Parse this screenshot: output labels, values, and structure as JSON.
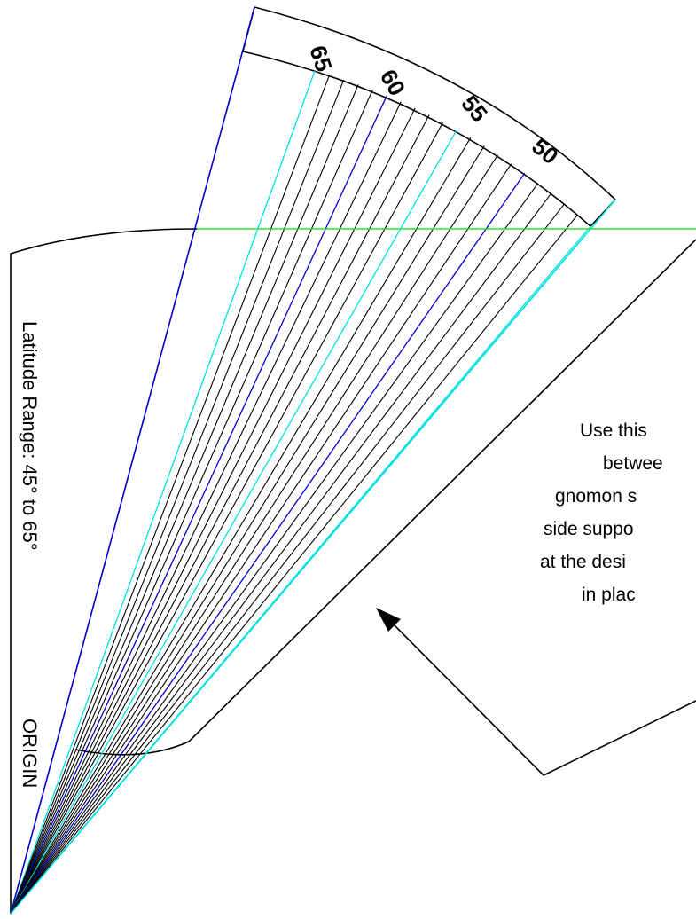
{
  "side_label": "Latitude Range: 45° to 65°",
  "origin_label": "ORIGIN",
  "scale_labels": [
    "65",
    "60",
    "55",
    "50"
  ],
  "note_lines": [
    "Use this",
    "betwee",
    "gnomon s",
    "side suppo",
    "at the desi",
    "in plac"
  ],
  "colors": {
    "line": "#000000",
    "major_line": "#0000cc",
    "minor_line": "#00e0e0",
    "horizon_line": "#33dd33"
  }
}
